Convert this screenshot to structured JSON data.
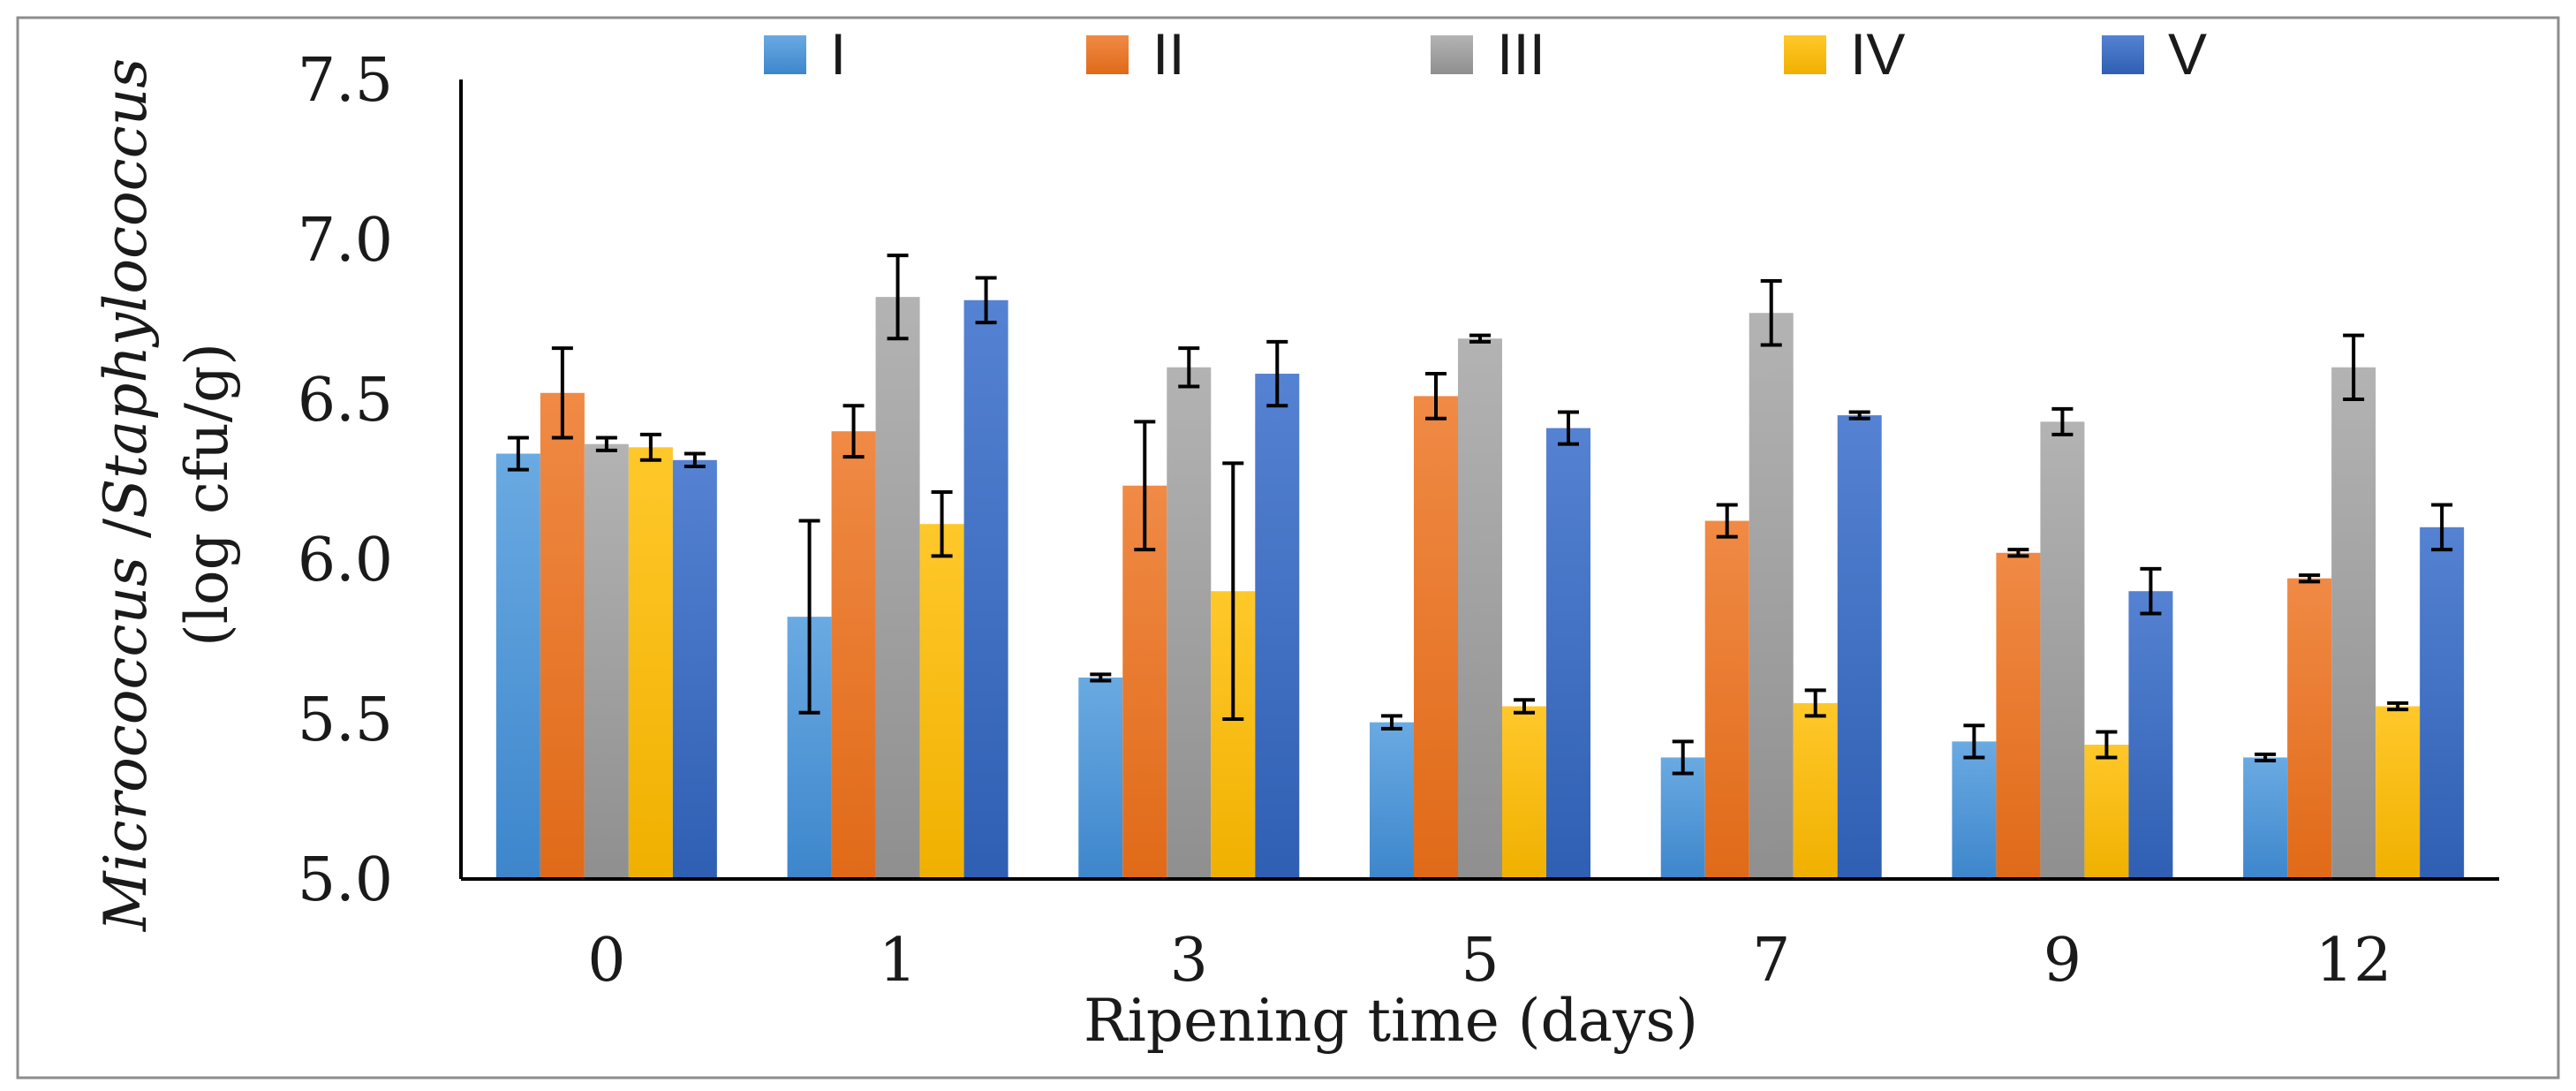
{
  "chart_data": {
    "type": "bar",
    "xlabel": "Ripening time (days)",
    "ylabel": {
      "line1_a": "Micrococcus",
      "line1_b": " /",
      "line1_c": "Staphylococcus",
      "line2": "(log cfu/g)"
    },
    "ylim": [
      5.0,
      7.5
    ],
    "yticks": [
      "5.0",
      "5.5",
      "6.0",
      "6.5",
      "7.0",
      "7.5"
    ],
    "ytick_values": [
      5.0,
      5.5,
      6.0,
      6.5,
      7.0,
      7.5
    ],
    "categories": [
      "0",
      "1",
      "3",
      "5",
      "7",
      "9",
      "12"
    ],
    "legend_position": "top",
    "series": [
      {
        "name": "I",
        "color": "#5b9bd5",
        "values": [
          6.33,
          5.82,
          5.63,
          5.49,
          5.38,
          5.43,
          5.38
        ],
        "errors": [
          0.05,
          0.3,
          0.01,
          0.02,
          0.05,
          0.05,
          0.01
        ]
      },
      {
        "name": "II",
        "color": "#ed7d31",
        "values": [
          6.52,
          6.4,
          6.23,
          6.51,
          6.12,
          6.02,
          5.94
        ],
        "errors": [
          0.14,
          0.08,
          0.2,
          0.07,
          0.05,
          0.01,
          0.01
        ]
      },
      {
        "name": "III",
        "color": "#a5a5a5",
        "values": [
          6.36,
          6.82,
          6.6,
          6.69,
          6.77,
          6.43,
          6.6
        ],
        "errors": [
          0.02,
          0.13,
          0.06,
          0.01,
          0.1,
          0.04,
          0.1
        ]
      },
      {
        "name": "IV",
        "color": "#ffc000",
        "values": [
          6.35,
          6.11,
          5.9,
          5.54,
          5.55,
          5.42,
          5.54
        ],
        "errors": [
          0.04,
          0.1,
          0.4,
          0.02,
          0.04,
          0.04,
          0.01
        ]
      },
      {
        "name": "V",
        "color": "#4472c4",
        "values": [
          6.31,
          6.81,
          6.58,
          6.41,
          6.45,
          5.9,
          6.1
        ],
        "errors": [
          0.02,
          0.07,
          0.1,
          0.05,
          0.01,
          0.07,
          0.07
        ]
      }
    ]
  }
}
